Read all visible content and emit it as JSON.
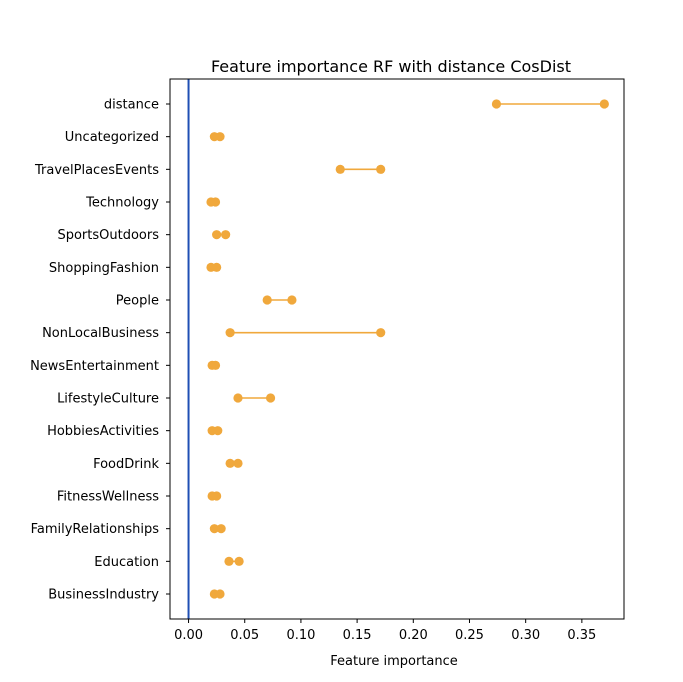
{
  "chart_data": {
    "type": "dumbbell",
    "title": "Feature importance  RF  with distance CosDist",
    "xlabel": "Feature importance",
    "ylabel": "",
    "xlim": [
      -0.0165,
      0.3875
    ],
    "xticks": [
      0.0,
      0.05,
      0.1,
      0.15,
      0.2,
      0.25,
      0.3,
      0.35
    ],
    "xtick_labels": [
      "0.00",
      "0.05",
      "0.10",
      "0.15",
      "0.20",
      "0.25",
      "0.30",
      "0.35"
    ],
    "grid": false,
    "reference_line": {
      "x": 0.0,
      "color": "#1f4fb4"
    },
    "marker_color": "#f0a83c",
    "categories": [
      "distance",
      "Uncategorized",
      "TravelPlacesEvents",
      "Technology",
      "SportsOutdoors",
      "ShoppingFashion",
      "People",
      "NonLocalBusiness",
      "NewsEntertainment",
      "LifestyleCulture",
      "HobbiesActivities",
      "FoodDrink",
      "FitnessWellness",
      "FamilyRelationships",
      "Education",
      "BusinessIndustry"
    ],
    "low": [
      0.274,
      0.023,
      0.135,
      0.02,
      0.025,
      0.02,
      0.07,
      0.037,
      0.021,
      0.044,
      0.021,
      0.037,
      0.021,
      0.023,
      0.036,
      0.023
    ],
    "high": [
      0.37,
      0.028,
      0.171,
      0.024,
      0.033,
      0.025,
      0.092,
      0.171,
      0.024,
      0.073,
      0.026,
      0.044,
      0.025,
      0.029,
      0.045,
      0.028
    ]
  }
}
